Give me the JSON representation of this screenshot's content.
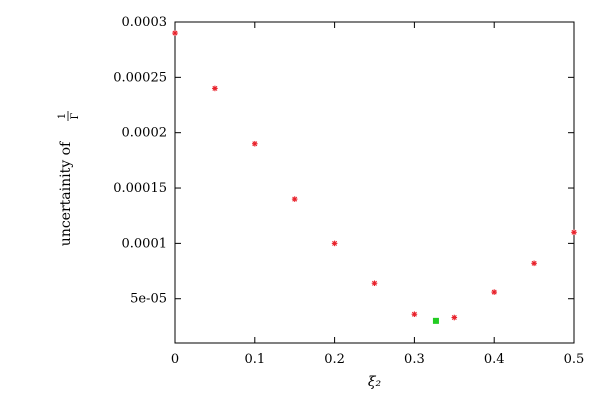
{
  "chart_data": {
    "type": "scatter",
    "xlabel": "ξ₂",
    "ylabel_prefix": "uncertainity of",
    "ylabel_fraction_num": "1",
    "ylabel_fraction_den": "Γ",
    "xlim": [
      0,
      0.5
    ],
    "ylim": [
      1e-05,
      0.0003
    ],
    "x_ticks": [
      0,
      0.1,
      0.2,
      0.3,
      0.4,
      0.5
    ],
    "x_tick_labels": [
      "0",
      "0.1",
      "0.2",
      "0.3",
      "0.4",
      "0.5"
    ],
    "y_ticks": [
      5e-05,
      0.0001,
      0.00015,
      0.0002,
      0.00025,
      0.0003
    ],
    "y_tick_labels": [
      "5e-05",
      "0.0001",
      "0.00015",
      "0.0002",
      "0.00025",
      "0.0003"
    ],
    "grid": false,
    "series": [
      {
        "marker_color": "#e8202a",
        "marker": "star",
        "points": [
          {
            "x": 0.0,
            "y": 0.00029
          },
          {
            "x": 0.05,
            "y": 0.00024
          },
          {
            "x": 0.1,
            "y": 0.00019
          },
          {
            "x": 0.15,
            "y": 0.00014
          },
          {
            "x": 0.2,
            "y": 0.0001
          },
          {
            "x": 0.25,
            "y": 6.4e-05
          },
          {
            "x": 0.3,
            "y": 3.6e-05
          },
          {
            "x": 0.35,
            "y": 3.3e-05
          },
          {
            "x": 0.4,
            "y": 5.6e-05
          },
          {
            "x": 0.45,
            "y": 8.2e-05
          },
          {
            "x": 0.5,
            "y": 0.00011
          }
        ]
      },
      {
        "marker_color": "#22cc22",
        "marker": "square",
        "points": [
          {
            "x": 0.327,
            "y": 3e-05
          }
        ]
      }
    ]
  }
}
